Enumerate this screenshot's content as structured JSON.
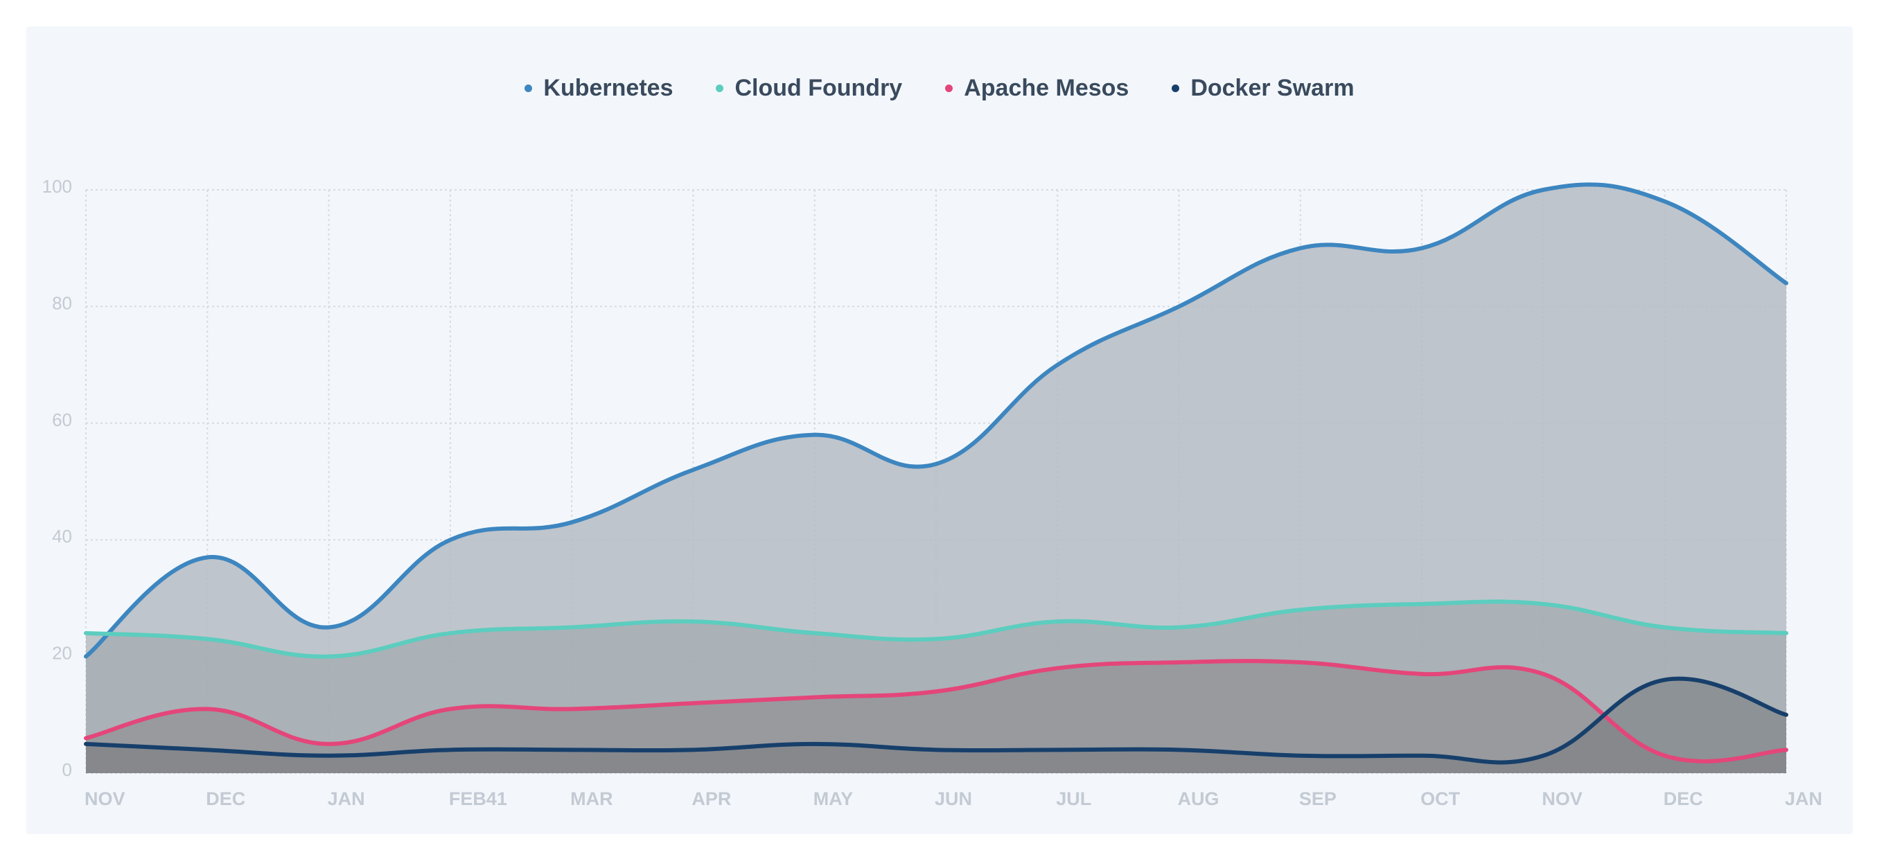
{
  "colors": {
    "background": "#f3f7fb",
    "grid": "#d6dbe1"
  },
  "chart_data": {
    "type": "area",
    "title": "",
    "xlabel": "",
    "ylabel": "",
    "ylim": [
      0,
      100
    ],
    "y_ticks": [
      0,
      20,
      40,
      60,
      80,
      100
    ],
    "grid": true,
    "legend_position": "top-center",
    "categories": [
      "NOV",
      "DEC",
      "JAN",
      "FEB41",
      "MAR",
      "APR",
      "MAY",
      "JUN",
      "JUL",
      "AUG",
      "SEP",
      "OCT",
      "NOV",
      "DEC",
      "JAN"
    ],
    "series": [
      {
        "name": "Kubernetes",
        "color": "#3d86c0",
        "fill": "#b5bcc3",
        "values": [
          20,
          37,
          25,
          40,
          43,
          52,
          58,
          53,
          70,
          80,
          90,
          90,
          100,
          98,
          84
        ]
      },
      {
        "name": "Cloud Foundry",
        "color": "#5ccdbf",
        "fill": "#9da3a8",
        "values": [
          24,
          23,
          20,
          24,
          25,
          26,
          24,
          23,
          26,
          25,
          28,
          29,
          29,
          25,
          24
        ]
      },
      {
        "name": "Apache Mesos",
        "color": "#e4467a",
        "fill": "#8c8a8e",
        "values": [
          6,
          11,
          5,
          11,
          11,
          12,
          13,
          14,
          18,
          19,
          19,
          17,
          17,
          3,
          4
        ]
      },
      {
        "name": "Docker Swarm",
        "color": "#173f6b",
        "fill": "#7a7d80",
        "values": [
          5,
          4,
          3,
          4,
          4,
          4,
          5,
          4,
          4,
          4,
          3,
          3,
          3,
          16,
          10
        ]
      }
    ]
  }
}
